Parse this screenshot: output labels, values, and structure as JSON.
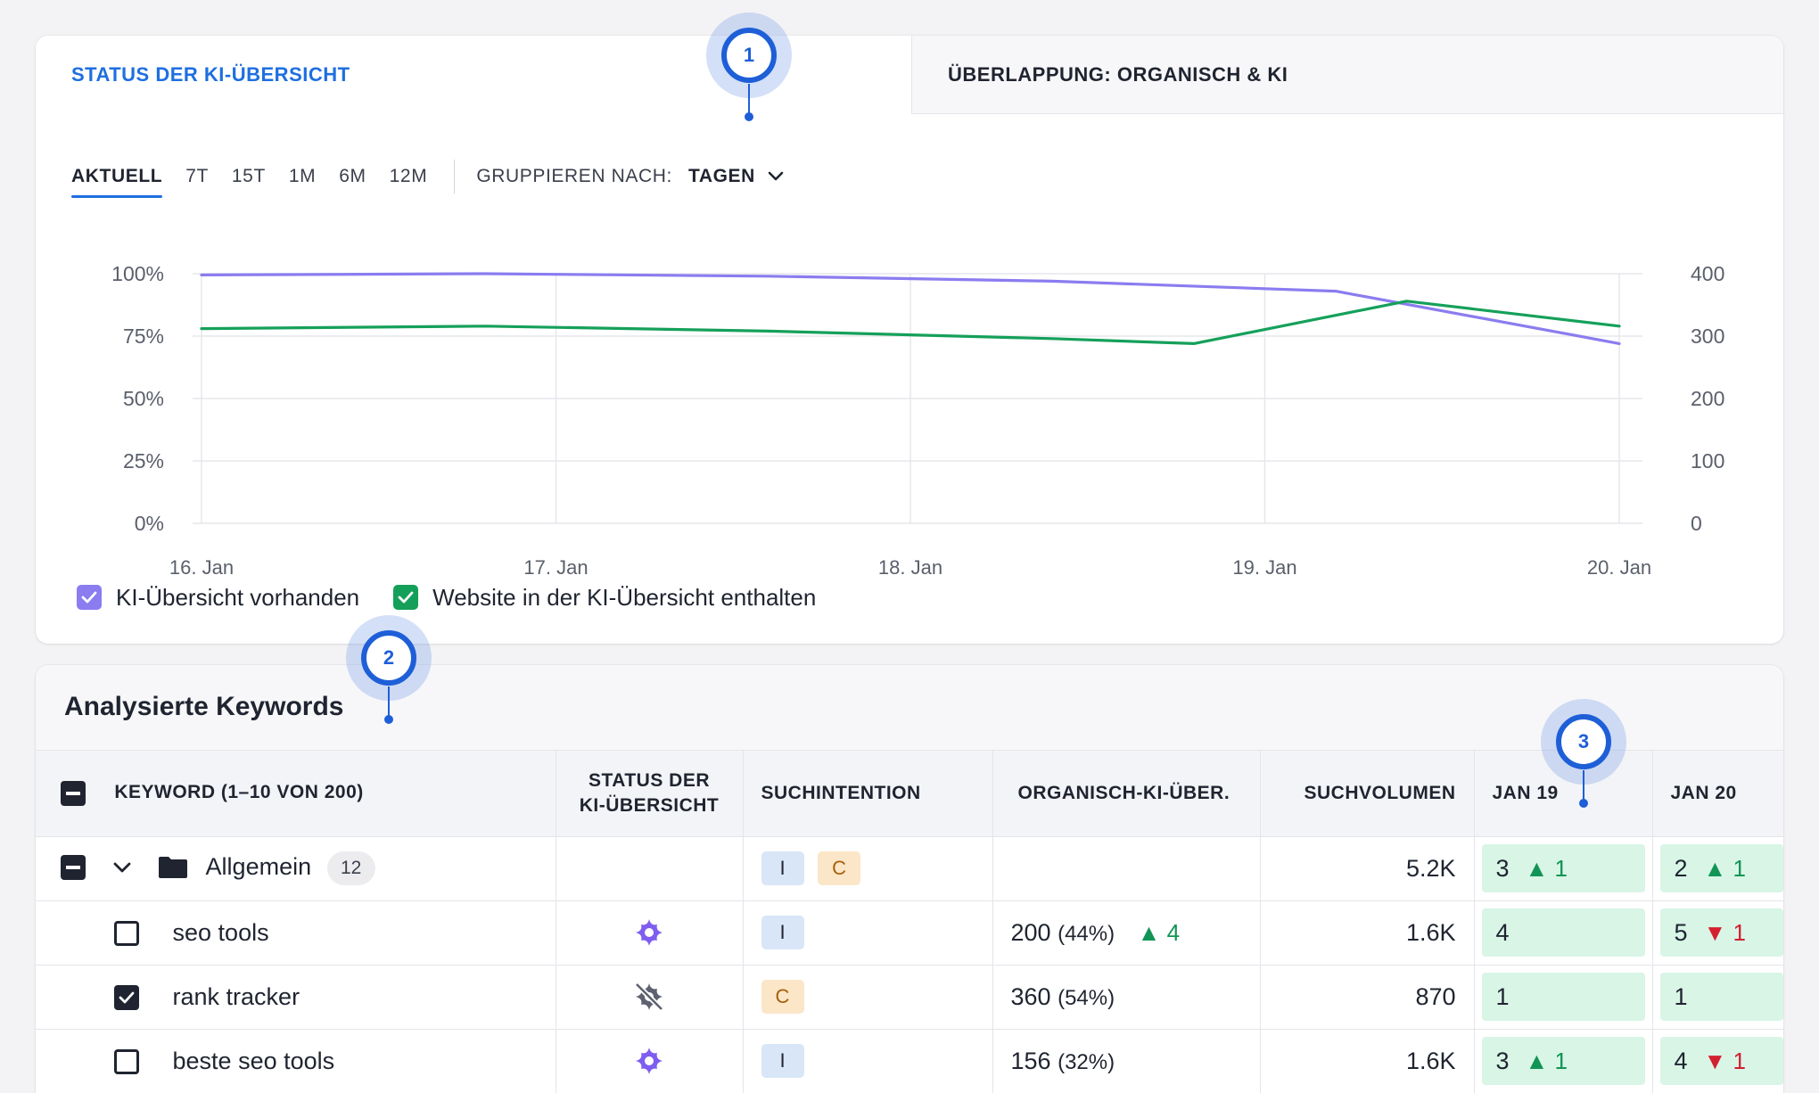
{
  "tabs": [
    {
      "label": "STATUS DER KI-ÜBERSICHT",
      "active": true
    },
    {
      "label": "ÜBERLAPPUNG: ORGANISCH & KI",
      "active": false
    }
  ],
  "periods": [
    "AKTUELL",
    "7T",
    "15T",
    "1M",
    "6M",
    "12M"
  ],
  "active_period": "AKTUELL",
  "group_by": {
    "label": "GRUPPIEREN NACH:",
    "value": "TAGEN"
  },
  "chart_data": {
    "type": "line",
    "x": [
      "16. Jan",
      "17. Jan",
      "18. Jan",
      "19. Jan",
      "20. Jan"
    ],
    "left_axis": {
      "ticks": [
        "100%",
        "75%",
        "50%",
        "25%",
        "0%"
      ],
      "ylim": [
        0,
        100
      ]
    },
    "right_axis": {
      "ticks": [
        "400",
        "300",
        "200",
        "100",
        "0"
      ],
      "ylim": [
        0,
        400
      ]
    },
    "series": [
      {
        "name": "KI-Übersicht vorhanden",
        "color": "#8b7cf0",
        "axis": "left",
        "x": [
          0,
          0.8,
          1.6,
          2.4,
          3.2,
          4.0
        ],
        "values": [
          99.5,
          100,
          99,
          97,
          93,
          72
        ]
      },
      {
        "name": "Website in der KI-Übersicht enthalten",
        "color": "#15a05a",
        "axis": "left",
        "x": [
          0,
          0.8,
          1.6,
          2.4,
          2.8,
          3.4,
          4.0
        ],
        "values": [
          78,
          79,
          77,
          74,
          72,
          89,
          79
        ]
      }
    ],
    "grid": true,
    "legend": "bottom-left"
  },
  "legend": [
    {
      "label": "KI-Übersicht vorhanden",
      "color": "#8b7cf0",
      "checked": true
    },
    {
      "label": "Website in der KI-Übersicht enthalten",
      "color": "#15a05a",
      "checked": true
    }
  ],
  "markers": [
    "1",
    "2",
    "3"
  ],
  "keywords": {
    "title": "Analysierte Keywords",
    "columns": {
      "keyword": "KEYWORD (1–10 VON 200)",
      "status_line1": "STATUS DER",
      "status_line2": "KI-ÜBERSICHT",
      "intent": "SUCHINTENTION",
      "overlap": "ORGANISCH-KI-ÜBER.",
      "volume": "SUCHVOLUMEN",
      "jan19": "JAN 19",
      "jan20": "JAN 20"
    },
    "group": {
      "name": "Allgemein",
      "count": "12",
      "intents": [
        "I",
        "C"
      ],
      "volume": "5.2K",
      "jan19": "3",
      "jan19_change": "1",
      "jan20": "2",
      "jan20_change": "1"
    },
    "rows": [
      {
        "keyword": "seo tools",
        "checked": false,
        "ai_status": "present",
        "intent": "I",
        "overlap": "200",
        "overlap_pct": "(44%)",
        "overlap_change": "4",
        "volume": "1.6K",
        "jan19": "4",
        "jan19_change": "",
        "jan20": "5",
        "jan20_change": "1"
      },
      {
        "keyword": "rank tracker",
        "checked": true,
        "ai_status": "absent",
        "intent": "C",
        "overlap": "360",
        "overlap_pct": "(54%)",
        "overlap_change": "",
        "volume": "870",
        "jan19": "1",
        "jan19_change": "",
        "jan20": "1",
        "jan20_change": ""
      },
      {
        "keyword": "beste seo tools",
        "checked": false,
        "ai_status": "present",
        "intent": "I",
        "overlap": "156",
        "overlap_pct": "(32%)",
        "overlap_change": "",
        "volume": "1.6K",
        "jan19": "3",
        "jan19_change": "1",
        "jan20": "4",
        "jan20_change": "1"
      }
    ]
  }
}
